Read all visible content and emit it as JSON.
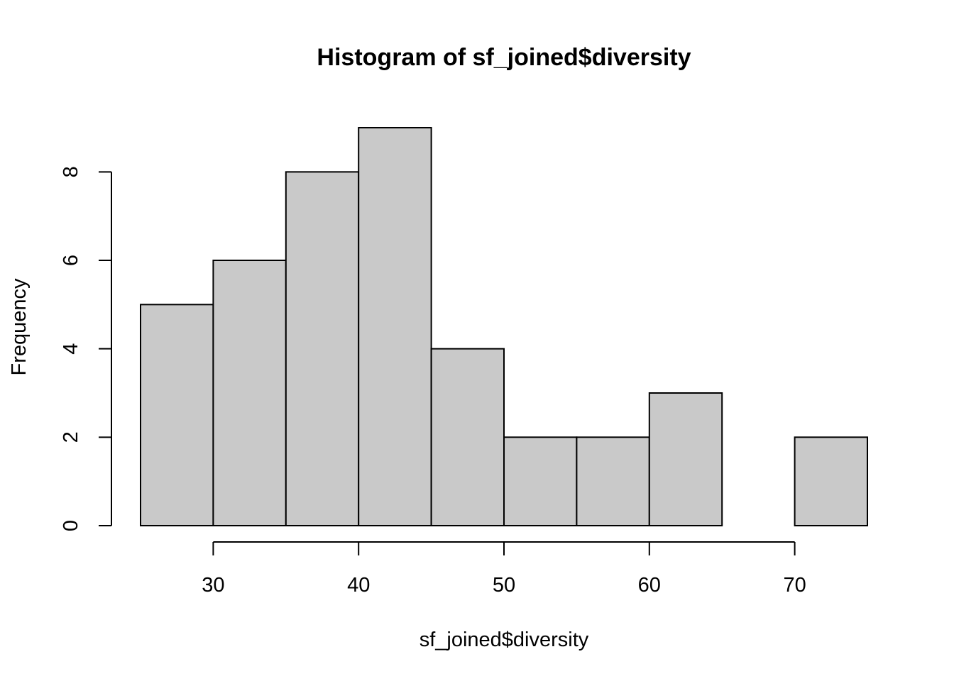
{
  "chart_data": {
    "type": "bar",
    "title": "Histogram of sf_joined$diversity",
    "xlabel": "sf_joined$diversity",
    "ylabel": "Frequency",
    "bins": [
      {
        "from": 25,
        "to": 30,
        "count": 5
      },
      {
        "from": 30,
        "to": 35,
        "count": 6
      },
      {
        "from": 35,
        "to": 40,
        "count": 8
      },
      {
        "from": 40,
        "to": 45,
        "count": 9
      },
      {
        "from": 45,
        "to": 50,
        "count": 4
      },
      {
        "from": 50,
        "to": 55,
        "count": 2
      },
      {
        "from": 55,
        "to": 60,
        "count": 2
      },
      {
        "from": 60,
        "to": 65,
        "count": 3
      },
      {
        "from": 65,
        "to": 70,
        "count": 0
      },
      {
        "from": 70,
        "to": 75,
        "count": 2
      }
    ],
    "x_ticks": [
      30,
      40,
      50,
      60,
      70
    ],
    "y_ticks": [
      0,
      2,
      4,
      6,
      8
    ],
    "xlim": [
      25,
      75
    ],
    "ylim": [
      0,
      9
    ],
    "grid": false,
    "colors": {
      "bar_fill": "#c9c9c9",
      "bar_stroke": "#000000"
    }
  }
}
